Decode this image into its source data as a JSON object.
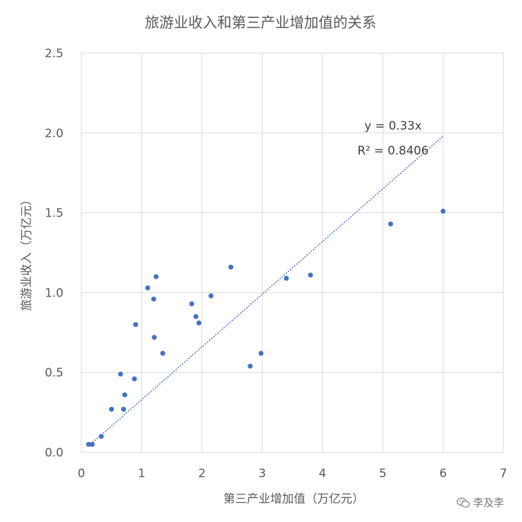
{
  "chart_data": {
    "type": "scatter",
    "title": "旅游业收入和第三产业增加值的关系",
    "xlabel": "第三产业增加值（万亿元）",
    "ylabel": "旅游业收入（万亿元）",
    "xlim": [
      0,
      7
    ],
    "ylim": [
      0,
      2.5
    ],
    "x_ticks": [
      "0",
      "1",
      "2",
      "3",
      "4",
      "5",
      "6",
      "7"
    ],
    "y_ticks": [
      "0.0",
      "0.5",
      "1.0",
      "1.5",
      "2.0",
      "2.5"
    ],
    "grid": true,
    "point_color": "#4472C4",
    "trendline_color": "#4472C4",
    "points": [
      {
        "x": 0.12,
        "y": 0.05
      },
      {
        "x": 0.18,
        "y": 0.05
      },
      {
        "x": 0.33,
        "y": 0.1
      },
      {
        "x": 0.5,
        "y": 0.27
      },
      {
        "x": 0.65,
        "y": 0.49
      },
      {
        "x": 0.7,
        "y": 0.27
      },
      {
        "x": 0.72,
        "y": 0.36
      },
      {
        "x": 0.88,
        "y": 0.46
      },
      {
        "x": 0.9,
        "y": 0.8
      },
      {
        "x": 1.1,
        "y": 1.03
      },
      {
        "x": 1.2,
        "y": 0.96
      },
      {
        "x": 1.21,
        "y": 0.72
      },
      {
        "x": 1.24,
        "y": 1.1
      },
      {
        "x": 1.35,
        "y": 0.62
      },
      {
        "x": 1.83,
        "y": 0.93
      },
      {
        "x": 1.9,
        "y": 0.85
      },
      {
        "x": 1.95,
        "y": 0.81
      },
      {
        "x": 2.15,
        "y": 0.98
      },
      {
        "x": 2.48,
        "y": 1.16
      },
      {
        "x": 2.8,
        "y": 0.54
      },
      {
        "x": 2.98,
        "y": 0.62
      },
      {
        "x": 3.4,
        "y": 1.09
      },
      {
        "x": 3.8,
        "y": 1.11
      },
      {
        "x": 5.13,
        "y": 1.43
      },
      {
        "x": 6.0,
        "y": 1.51
      }
    ],
    "trendline": {
      "slope": 0.33,
      "x_start": 0.12,
      "x_end": 6.0
    },
    "annotations": [
      "y = 0.33x",
      "R² = 0.8406"
    ]
  },
  "watermark": {
    "text": "李及李",
    "icon": "wechat-icon"
  }
}
